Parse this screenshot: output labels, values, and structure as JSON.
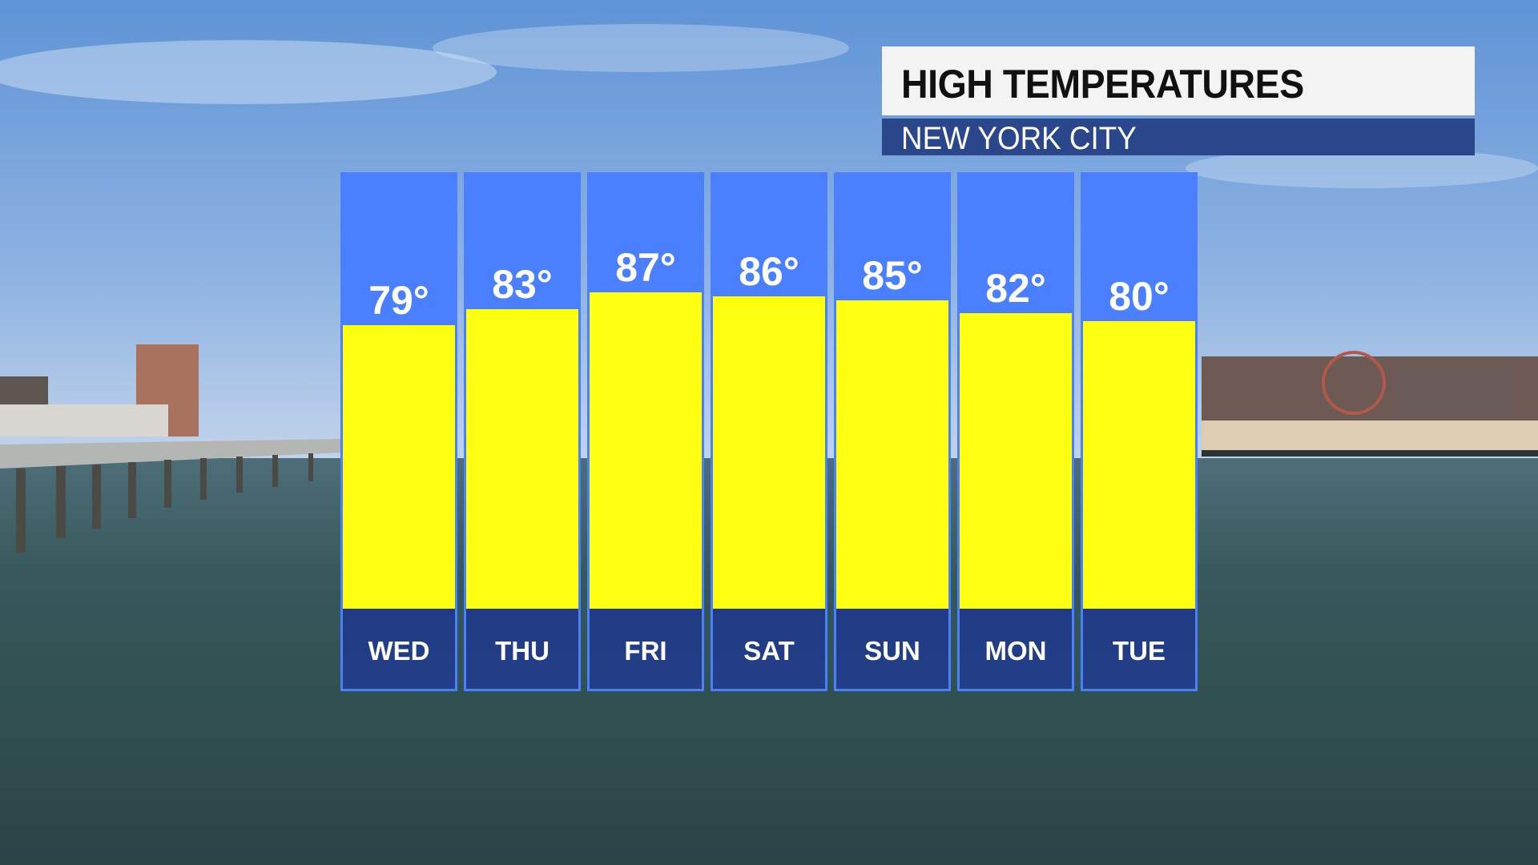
{
  "header": {
    "title": "HIGH TEMPERATURES",
    "subtitle": "NEW YORK CITY"
  },
  "colors": {
    "column_blue": "#4a7fff",
    "bar_yellow": "#ffff12",
    "day_band": "#213e85",
    "subtitle_band": "#2b478c"
  },
  "chart_data": {
    "type": "bar",
    "title": "HIGH TEMPERATURES",
    "subtitle": "NEW YORK CITY",
    "categories": [
      "WED",
      "THU",
      "FRI",
      "SAT",
      "SUN",
      "MON",
      "TUE"
    ],
    "values": [
      79,
      83,
      87,
      86,
      85,
      82,
      80
    ],
    "labels": [
      "79°",
      "83°",
      "87°",
      "86°",
      "85°",
      "82°",
      "80°"
    ],
    "unit": "°F",
    "grid": false
  }
}
